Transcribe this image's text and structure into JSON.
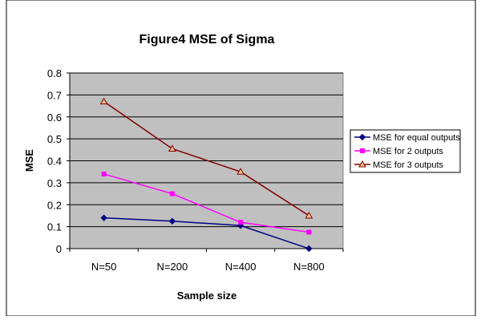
{
  "chart_data": {
    "type": "line",
    "title": "Figure4 MSE of Sigma",
    "xlabel": "Sample size",
    "ylabel": "MSE",
    "categories": [
      "N=50",
      "N=200",
      "N=400",
      "N=800"
    ],
    "ylim": [
      0,
      0.8
    ],
    "yticks": [
      "0",
      "0.1",
      "0.2",
      "0.3",
      "0.4",
      "0.5",
      "0.6",
      "0.7",
      "0.8"
    ],
    "grid": true,
    "legend_position": "right",
    "series": [
      {
        "name": "MSE for equal outputs",
        "values": [
          0.14,
          0.125,
          0.105,
          0.0
        ],
        "color": "#000080",
        "marker": "diamond"
      },
      {
        "name": "MSE for 2 outputs",
        "values": [
          0.34,
          0.25,
          0.12,
          0.075
        ],
        "color": "#ff00ff",
        "marker": "square"
      },
      {
        "name": "MSE for 3 outputs",
        "values": [
          0.67,
          0.455,
          0.35,
          0.15
        ],
        "color": "#800000",
        "marker": "triangle"
      }
    ],
    "plot_background": "#c0c0c0"
  }
}
